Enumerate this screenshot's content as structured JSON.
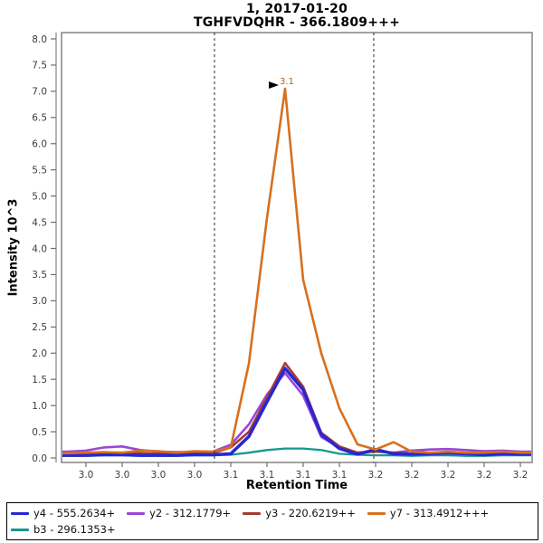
{
  "title": {
    "line1": "1, 2017-01-20",
    "line2": "TGHFVDQHR - 366.1809+++"
  },
  "axes": {
    "y_label": "Intensity 10^3",
    "x_label": "Retention Time"
  },
  "legend": [
    {
      "label": "y4 - 555.2634+",
      "color": "#2727d3"
    },
    {
      "label": "y2 - 312.1779+",
      "color": "#9a46d9"
    },
    {
      "label": "y3 - 220.6219++",
      "color": "#a63b32"
    },
    {
      "label": "y7 - 313.4912+++",
      "color": "#d7701f"
    },
    {
      "label": "b3 - 296.1353+",
      "color": "#16988f"
    }
  ],
  "chart_data": {
    "type": "line",
    "title": "1, 2017-01-20",
    "subtitle": "TGHFVDQHR - 366.1809+++",
    "xlabel": "Retention Time",
    "ylabel": "Intensity 10^3",
    "ylim": [
      0.0,
      8.0
    ],
    "xlim": [
      2.9665,
      3.2265
    ],
    "grid": false,
    "legend_position": "bottom",
    "y_ticks": [
      0.0,
      0.5,
      1.0,
      1.5,
      2.0,
      2.5,
      3.0,
      3.5,
      4.0,
      4.5,
      5.0,
      5.5,
      6.0,
      6.5,
      7.0,
      7.5,
      8.0
    ],
    "x_tick_values": [
      2.98,
      3.0,
      3.02,
      3.04,
      3.06,
      3.08,
      3.1,
      3.12,
      3.14,
      3.16,
      3.18,
      3.2,
      3.22
    ],
    "x_tick_labels": [
      "3.0",
      "3.0",
      "3.0",
      "3.0",
      "3.1",
      "3.1",
      "3.1",
      "3.1",
      "3.2",
      "3.2",
      "3.2",
      "3.2",
      "3.2"
    ],
    "x": [
      2.97,
      2.98,
      2.99,
      3.0,
      3.01,
      3.02,
      3.03,
      3.04,
      3.05,
      3.06,
      3.07,
      3.08,
      3.09,
      3.1,
      3.11,
      3.12,
      3.13,
      3.14,
      3.15,
      3.16,
      3.17,
      3.18,
      3.19,
      3.2,
      3.21,
      3.22
    ],
    "series": [
      {
        "name": "y4 - 555.2634+",
        "color": "#2727d3",
        "width": 3.5,
        "values": [
          0.05,
          0.05,
          0.06,
          0.06,
          0.05,
          0.05,
          0.05,
          0.06,
          0.06,
          0.08,
          0.41,
          1.07,
          1.71,
          1.3,
          0.45,
          0.18,
          0.07,
          0.16,
          0.08,
          0.07,
          0.08,
          0.1,
          0.08,
          0.06,
          0.08,
          0.07
        ]
      },
      {
        "name": "y2 - 312.1779+",
        "color": "#9a46d9",
        "width": 2.6,
        "values": [
          0.12,
          0.14,
          0.2,
          0.22,
          0.15,
          0.12,
          0.11,
          0.11,
          0.12,
          0.25,
          0.64,
          1.21,
          1.62,
          1.19,
          0.4,
          0.2,
          0.1,
          0.13,
          0.1,
          0.14,
          0.16,
          0.17,
          0.15,
          0.13,
          0.14,
          0.12
        ]
      },
      {
        "name": "y3 - 220.6219++",
        "color": "#a63b32",
        "width": 2.6,
        "values": [
          0.08,
          0.08,
          0.09,
          0.1,
          0.09,
          0.08,
          0.08,
          0.08,
          0.09,
          0.2,
          0.5,
          1.15,
          1.81,
          1.36,
          0.48,
          0.22,
          0.1,
          0.12,
          0.1,
          0.08,
          0.08,
          0.09,
          0.08,
          0.08,
          0.08,
          0.08
        ]
      },
      {
        "name": "y7 - 313.4912+++",
        "color": "#d7701f",
        "width": 2.6,
        "values": [
          0.09,
          0.1,
          0.11,
          0.1,
          0.14,
          0.13,
          0.1,
          0.13,
          0.12,
          0.2,
          1.8,
          4.58,
          7.05,
          3.4,
          2.0,
          0.95,
          0.26,
          0.16,
          0.3,
          0.12,
          0.1,
          0.12,
          0.1,
          0.1,
          0.12,
          0.1
        ]
      },
      {
        "name": "b3 - 296.1353+",
        "color": "#16988f",
        "width": 2.3,
        "values": [
          0.04,
          0.04,
          0.05,
          0.05,
          0.04,
          0.04,
          0.04,
          0.05,
          0.05,
          0.06,
          0.1,
          0.15,
          0.18,
          0.18,
          0.15,
          0.08,
          0.06,
          0.05,
          0.05,
          0.04,
          0.05,
          0.05,
          0.04,
          0.04,
          0.05,
          0.05
        ]
      }
    ],
    "peak_boundaries": [
      3.051,
      3.139
    ],
    "peak_annotation": {
      "x": 3.09,
      "y": 7.05,
      "text": "3.1",
      "color": "#b4651e"
    }
  },
  "colors": {
    "frame": "#848484",
    "tick": "#6e6e6e",
    "tick_label": "#3c3c3c",
    "boundary_line": "#2a2a2a",
    "annotation_marker": "#000000"
  }
}
